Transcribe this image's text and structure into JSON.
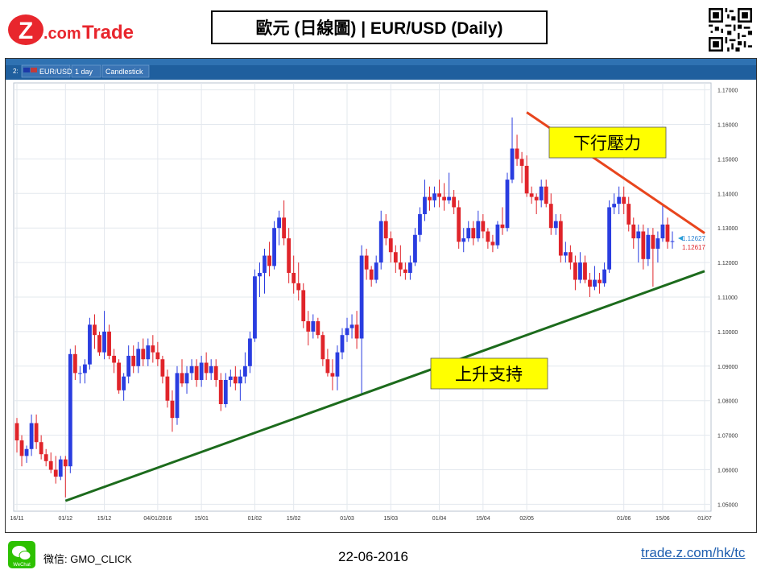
{
  "header": {
    "brand": "Z.com Trade",
    "brand_z": "Z",
    "brand_com": ".com",
    "brand_trade": "Trade",
    "title": "歐元 (日線圖) | EUR/USD (Daily)",
    "colors": {
      "brand_red": "#e8262d"
    }
  },
  "toolbar": {
    "symbol": "EUR/USD",
    "timeframe": "1 day",
    "chart_type": "Candlestick",
    "prefix": "2:"
  },
  "annotations": {
    "resistance_label": "下行壓力",
    "support_label": "上升支持"
  },
  "footer": {
    "wechat_id": "微信: GMO_CLICK",
    "wechat_icon_label": "WeChat",
    "date": "22-06-2016",
    "url": "trade.z.com/hk/tc"
  },
  "chart_data": {
    "type": "candlestick",
    "symbol": "EUR/USD",
    "timeframe": "1 day",
    "y_ticks": [
      "1.05000",
      "1.06000",
      "1.07000",
      "1.08000",
      "1.09000",
      "1.10000",
      "1.11000",
      "1.12000",
      "1.13000",
      "1.14000",
      "1.15000",
      "1.16000",
      "1.17000"
    ],
    "ylim": [
      1.048,
      1.172
    ],
    "x_ticks": [
      "16/11",
      "01/12",
      "15/12",
      "04/01/2016",
      "15/01",
      "01/02",
      "15/02",
      "01/03",
      "15/03",
      "01/04",
      "15/04",
      "02/05",
      "01/06",
      "15/06",
      "01/07"
    ],
    "price_labels": {
      "bid": "1.12617",
      "ask": "1.12627"
    },
    "grid": true,
    "colors": {
      "up": "#2a3de0",
      "down": "#e0242a",
      "resistance": "#e8451d",
      "support": "#1c6b1c"
    },
    "trendlines": [
      {
        "name": "下行壓力",
        "from": [
          "02/05",
          1.1635
        ],
        "to": [
          "01/07",
          1.1285
        ]
      },
      {
        "name": "上升支持",
        "from": [
          "01/12",
          1.051
        ],
        "to": [
          "01/07",
          1.1175
        ]
      }
    ],
    "candles": [
      [
        1.0735,
        1.075,
        1.065,
        1.0685
      ],
      [
        1.0685,
        1.07,
        1.061,
        1.064
      ],
      [
        1.064,
        1.067,
        1.062,
        1.066
      ],
      [
        1.066,
        1.076,
        1.064,
        1.0735
      ],
      [
        1.0735,
        1.076,
        1.066,
        1.068
      ],
      [
        1.068,
        1.07,
        1.063,
        1.0645
      ],
      [
        1.0645,
        1.066,
        1.061,
        1.0625
      ],
      [
        1.0625,
        1.065,
        1.059,
        1.06
      ],
      [
        1.06,
        1.064,
        1.056,
        1.058
      ],
      [
        1.058,
        1.064,
        1.057,
        1.063
      ],
      [
        1.063,
        1.064,
        1.052,
        1.061
      ],
      [
        1.061,
        1.095,
        1.059,
        1.0935
      ],
      [
        1.0935,
        1.096,
        1.086,
        1.088
      ],
      [
        1.088,
        1.09,
        1.085,
        1.088
      ],
      [
        1.088,
        1.092,
        1.085,
        1.0905
      ],
      [
        1.0905,
        1.104,
        1.089,
        1.102
      ],
      [
        1.102,
        1.105,
        1.095,
        1.099
      ],
      [
        1.099,
        1.1,
        1.093,
        1.094
      ],
      [
        1.094,
        1.106,
        1.092,
        1.1
      ],
      [
        1.1,
        1.102,
        1.092,
        1.093
      ],
      [
        1.093,
        1.095,
        1.088,
        1.091
      ],
      [
        1.091,
        1.092,
        1.082,
        1.083
      ],
      [
        1.083,
        1.088,
        1.08,
        1.087
      ],
      [
        1.087,
        1.096,
        1.085,
        1.093
      ],
      [
        1.093,
        1.096,
        1.088,
        1.09
      ],
      [
        1.09,
        1.097,
        1.088,
        1.095
      ],
      [
        1.095,
        1.098,
        1.09,
        1.092
      ],
      [
        1.092,
        1.098,
        1.09,
        1.096
      ],
      [
        1.096,
        1.099,
        1.091,
        1.094
      ],
      [
        1.094,
        1.097,
        1.09,
        1.092
      ],
      [
        1.092,
        1.093,
        1.085,
        1.087
      ],
      [
        1.087,
        1.089,
        1.078,
        1.08
      ],
      [
        1.08,
        1.083,
        1.071,
        1.075
      ],
      [
        1.075,
        1.09,
        1.073,
        1.088
      ],
      [
        1.088,
        1.092,
        1.084,
        1.085
      ],
      [
        1.085,
        1.09,
        1.082,
        1.088
      ],
      [
        1.088,
        1.092,
        1.086,
        1.09
      ],
      [
        1.09,
        1.092,
        1.084,
        1.086
      ],
      [
        1.086,
        1.093,
        1.084,
        1.091
      ],
      [
        1.091,
        1.094,
        1.086,
        1.088
      ],
      [
        1.088,
        1.092,
        1.086,
        1.09
      ],
      [
        1.09,
        1.092,
        1.084,
        1.086
      ],
      [
        1.086,
        1.088,
        1.077,
        1.079
      ],
      [
        1.079,
        1.088,
        1.078,
        1.086
      ],
      [
        1.086,
        1.089,
        1.084,
        1.087
      ],
      [
        1.087,
        1.09,
        1.083,
        1.085
      ],
      [
        1.085,
        1.089,
        1.08,
        1.087
      ],
      [
        1.087,
        1.094,
        1.085,
        1.09
      ],
      [
        1.09,
        1.1,
        1.088,
        1.098
      ],
      [
        1.098,
        1.118,
        1.097,
        1.116
      ],
      [
        1.116,
        1.12,
        1.11,
        1.117
      ],
      [
        1.117,
        1.124,
        1.111,
        1.122
      ],
      [
        1.122,
        1.126,
        1.116,
        1.119
      ],
      [
        1.119,
        1.132,
        1.118,
        1.13
      ],
      [
        1.13,
        1.135,
        1.125,
        1.133
      ],
      [
        1.133,
        1.138,
        1.125,
        1.127
      ],
      [
        1.127,
        1.13,
        1.114,
        1.117
      ],
      [
        1.117,
        1.122,
        1.111,
        1.114
      ],
      [
        1.114,
        1.12,
        1.109,
        1.112
      ],
      [
        1.112,
        1.114,
        1.101,
        1.103
      ],
      [
        1.103,
        1.106,
        1.096,
        1.1
      ],
      [
        1.1,
        1.105,
        1.098,
        1.103
      ],
      [
        1.103,
        1.104,
        1.098,
        1.099
      ],
      [
        1.099,
        1.1,
        1.09,
        1.092
      ],
      [
        1.092,
        1.095,
        1.087,
        1.088
      ],
      [
        1.088,
        1.092,
        1.083,
        1.087
      ],
      [
        1.087,
        1.096,
        1.083,
        1.094
      ],
      [
        1.094,
        1.101,
        1.092,
        1.099
      ],
      [
        1.099,
        1.104,
        1.097,
        1.101
      ],
      [
        1.101,
        1.105,
        1.098,
        1.102
      ],
      [
        1.102,
        1.106,
        1.095,
        1.098
      ],
      [
        1.098,
        1.125,
        1.082,
        1.122
      ],
      [
        1.122,
        1.124,
        1.115,
        1.118
      ],
      [
        1.118,
        1.119,
        1.113,
        1.115
      ],
      [
        1.115,
        1.122,
        1.114,
        1.12
      ],
      [
        1.12,
        1.135,
        1.118,
        1.132
      ],
      [
        1.132,
        1.134,
        1.125,
        1.127
      ],
      [
        1.127,
        1.129,
        1.12,
        1.123
      ],
      [
        1.123,
        1.125,
        1.117,
        1.12
      ],
      [
        1.12,
        1.125,
        1.116,
        1.118
      ],
      [
        1.118,
        1.12,
        1.115,
        1.117
      ],
      [
        1.117,
        1.122,
        1.115,
        1.12
      ],
      [
        1.12,
        1.13,
        1.119,
        1.128
      ],
      [
        1.128,
        1.136,
        1.126,
        1.134
      ],
      [
        1.134,
        1.144,
        1.132,
        1.139
      ],
      [
        1.139,
        1.142,
        1.135,
        1.138
      ],
      [
        1.138,
        1.142,
        1.136,
        1.14
      ],
      [
        1.14,
        1.144,
        1.136,
        1.139
      ],
      [
        1.139,
        1.143,
        1.135,
        1.138
      ],
      [
        1.138,
        1.146,
        1.137,
        1.139
      ],
      [
        1.139,
        1.141,
        1.134,
        1.136
      ],
      [
        1.136,
        1.138,
        1.124,
        1.126
      ],
      [
        1.126,
        1.13,
        1.123,
        1.127
      ],
      [
        1.127,
        1.132,
        1.126,
        1.13
      ],
      [
        1.13,
        1.132,
        1.125,
        1.127
      ],
      [
        1.127,
        1.135,
        1.126,
        1.132
      ],
      [
        1.132,
        1.134,
        1.127,
        1.129
      ],
      [
        1.129,
        1.13,
        1.124,
        1.126
      ],
      [
        1.126,
        1.128,
        1.123,
        1.125
      ],
      [
        1.125,
        1.132,
        1.124,
        1.131
      ],
      [
        1.131,
        1.136,
        1.128,
        1.13
      ],
      [
        1.13,
        1.146,
        1.129,
        1.144
      ],
      [
        1.144,
        1.162,
        1.143,
        1.153
      ],
      [
        1.153,
        1.157,
        1.148,
        1.15
      ],
      [
        1.15,
        1.152,
        1.143,
        1.148
      ],
      [
        1.148,
        1.151,
        1.139,
        1.14
      ],
      [
        1.14,
        1.142,
        1.137,
        1.139
      ],
      [
        1.139,
        1.14,
        1.134,
        1.138
      ],
      [
        1.138,
        1.144,
        1.136,
        1.142
      ],
      [
        1.142,
        1.144,
        1.136,
        1.137
      ],
      [
        1.137,
        1.14,
        1.128,
        1.13
      ],
      [
        1.13,
        1.134,
        1.128,
        1.132
      ],
      [
        1.132,
        1.134,
        1.12,
        1.122
      ],
      [
        1.122,
        1.126,
        1.12,
        1.123
      ],
      [
        1.123,
        1.125,
        1.118,
        1.12
      ],
      [
        1.12,
        1.122,
        1.112,
        1.115
      ],
      [
        1.115,
        1.123,
        1.114,
        1.12
      ],
      [
        1.12,
        1.122,
        1.114,
        1.115
      ],
      [
        1.115,
        1.117,
        1.11,
        1.113
      ],
      [
        1.113,
        1.119,
        1.112,
        1.115
      ],
      [
        1.115,
        1.117,
        1.111,
        1.114
      ],
      [
        1.114,
        1.12,
        1.113,
        1.118
      ],
      [
        1.118,
        1.138,
        1.117,
        1.136
      ],
      [
        1.136,
        1.14,
        1.134,
        1.137
      ],
      [
        1.137,
        1.142,
        1.134,
        1.139
      ],
      [
        1.139,
        1.142,
        1.134,
        1.137
      ],
      [
        1.137,
        1.139,
        1.129,
        1.131
      ],
      [
        1.131,
        1.133,
        1.124,
        1.127
      ],
      [
        1.127,
        1.131,
        1.12,
        1.129
      ],
      [
        1.129,
        1.131,
        1.118,
        1.121
      ],
      [
        1.121,
        1.13,
        1.119,
        1.128
      ],
      [
        1.128,
        1.13,
        1.113,
        1.124
      ],
      [
        1.124,
        1.129,
        1.12,
        1.127
      ],
      [
        1.127,
        1.137,
        1.126,
        1.131
      ],
      [
        1.131,
        1.133,
        1.124,
        1.126
      ],
      [
        1.126,
        1.129,
        1.124,
        1.1262
      ]
    ]
  }
}
